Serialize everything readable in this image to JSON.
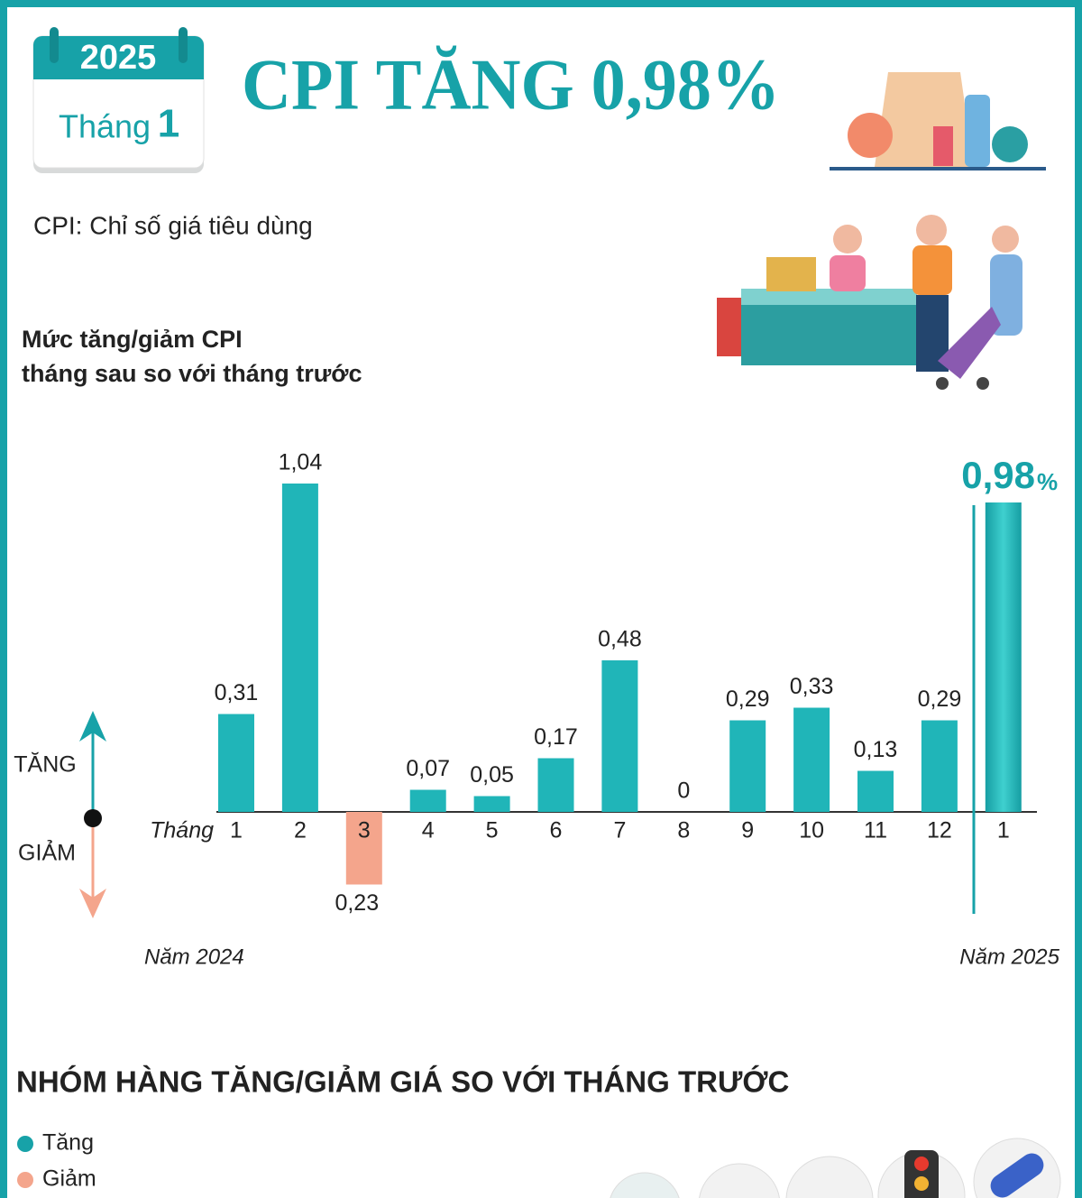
{
  "header": {
    "year": "2025",
    "month_word": "Tháng",
    "month_number": "1",
    "title": "CPI TĂNG 0,98%",
    "subtitle": "CPI: Chỉ số giá tiêu dùng"
  },
  "chart_data": {
    "type": "bar",
    "title_lines": [
      "Mức tăng/giảm CPI",
      "tháng sau so với tháng trước"
    ],
    "x_label": "Tháng",
    "categories": [
      "1",
      "2",
      "3",
      "4",
      "5",
      "6",
      "7",
      "8",
      "9",
      "10",
      "11",
      "12",
      "1"
    ],
    "values": [
      0.31,
      1.04,
      -0.23,
      0.07,
      0.05,
      0.17,
      0.48,
      0,
      0.29,
      0.33,
      0.13,
      0.29,
      0.98
    ],
    "value_labels": [
      "0,31",
      "1,04",
      "0,23",
      "0,07",
      "0,05",
      "0,17",
      "0,48",
      "0",
      "0,29",
      "0,33",
      "0,13",
      "0,29",
      "0,98"
    ],
    "highlight_unit": "%",
    "increase_color": "#20b5b8",
    "decrease_color": "#f4a58c",
    "ylim": [
      -0.3,
      1.1
    ],
    "direction_labels": {
      "up": "TĂNG",
      "down": "GIẢM"
    },
    "period_labels": [
      "Năm 2024",
      "Năm 2025"
    ]
  },
  "section": {
    "title": "NHÓM HÀNG TĂNG/GIẢM GIÁ SO VỚI THÁNG TRƯỚC",
    "legend": [
      {
        "label": "Tăng",
        "color": "#17a2a8"
      },
      {
        "label": "Giảm",
        "color": "#f4a58c"
      }
    ]
  }
}
